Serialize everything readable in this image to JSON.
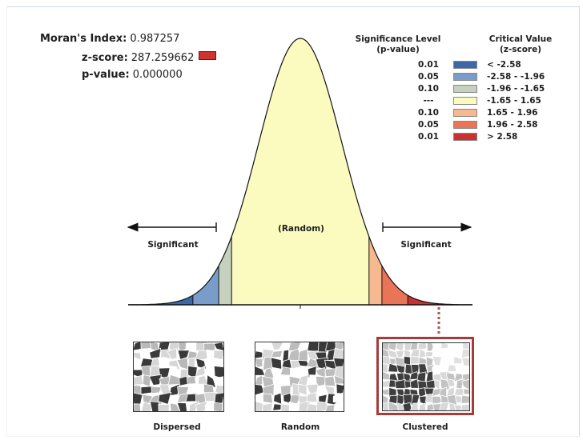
{
  "stats": {
    "morans_index_label": "Moran's Index:",
    "morans_index_value": "0.987257",
    "z_score_label": "z-score:",
    "z_score_value": "287.259662",
    "p_value_label": "p-value:",
    "p_value_value": "0.000000",
    "z_score_color": "#d03232"
  },
  "legend": {
    "sig_header_line1": "Significance Level",
    "sig_header_line2": "(p-value)",
    "crit_header_line1": "Critical Value",
    "crit_header_line2": "(z-score)",
    "rows": [
      {
        "sig": "0.01",
        "crit": "< -2.58",
        "color": "#3b68a8"
      },
      {
        "sig": "0.05",
        "crit": "-2.58 - -1.96",
        "color": "#7a9ccb"
      },
      {
        "sig": "0.10",
        "crit": "-1.96 - -1.65",
        "color": "#c5d0bd"
      },
      {
        "sig": "---",
        "crit": "-1.65 - 1.65",
        "color": "#fcfbbf"
      },
      {
        "sig": "0.10",
        "crit": "1.65 - 1.96",
        "color": "#f6b98f"
      },
      {
        "sig": "0.05",
        "crit": "1.96 - 2.58",
        "color": "#ea7457"
      },
      {
        "sig": "0.01",
        "crit": "> 2.58",
        "color": "#cc3131"
      }
    ]
  },
  "curve": {
    "center_label": "(Random)",
    "left_label": "Significant",
    "right_label": "Significant",
    "thresholds": [
      -2.58,
      -1.96,
      -1.65,
      1.65,
      1.96,
      2.58
    ]
  },
  "maps": [
    {
      "label": "Dispersed"
    },
    {
      "label": "Random"
    },
    {
      "label": "Clustered",
      "highlight_color": "#a83a3a"
    }
  ]
}
